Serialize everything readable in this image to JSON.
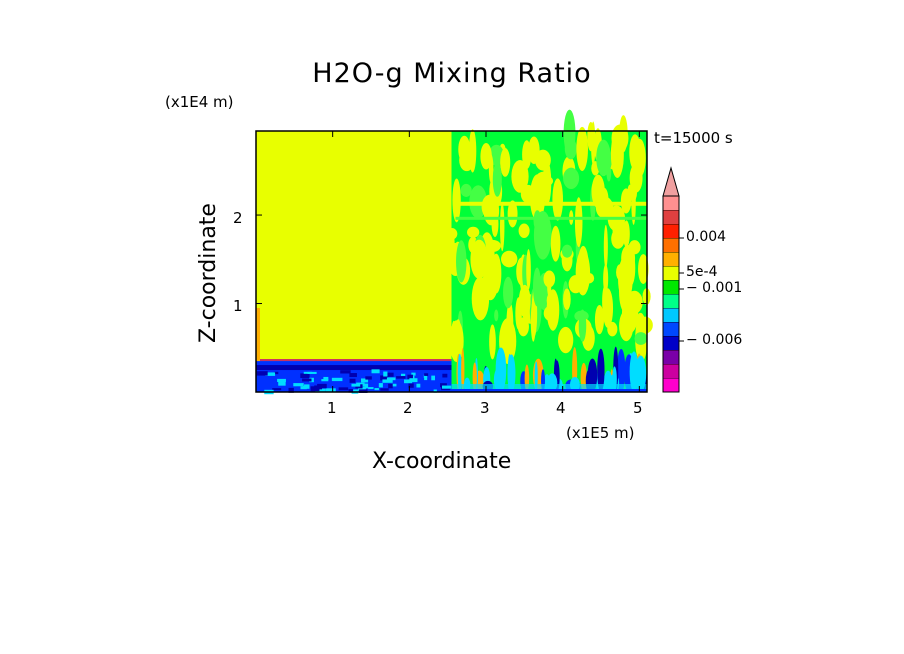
{
  "chart_data": {
    "type": "heatmap",
    "title": "H2O-g Mixing Ratio",
    "xlabel": "X-coordinate",
    "ylabel": "Z-coordinate",
    "x_unit": "(x1E5 m)",
    "y_unit": "(x1E4 m)",
    "time_label": "t=15000 s",
    "xlim": [
      0,
      5.1
    ],
    "ylim": [
      0,
      2.95
    ],
    "x_ticks": [
      "1",
      "2",
      "3",
      "4",
      "5"
    ],
    "y_ticks": [
      "1",
      "2"
    ],
    "colorbar": {
      "labels": [
        "0.004",
        "5e-4",
        "− 0.001",
        "− 0.006"
      ],
      "colors": [
        "#ff00cc",
        "#cc00a0",
        "#7a00a8",
        "#0000c8",
        "#0048ff",
        "#00c8ff",
        "#00ff88",
        "#00e800",
        "#e8ff00",
        "#ffb000",
        "#ff7000",
        "#ff2000",
        "#e04040",
        "#ff9090"
      ],
      "extend_max": true
    },
    "regions": [
      {
        "x": [
          0,
          2.55
        ],
        "z": [
          0.35,
          2.95
        ],
        "level": "yellow"
      },
      {
        "x": [
          0,
          2.55
        ],
        "z": [
          0,
          0.35
        ],
        "level": "blue-band"
      },
      {
        "x": [
          2.55,
          5.1
        ],
        "z": [
          0,
          2.95
        ],
        "level": "mixed green/yellow/cyan"
      }
    ]
  },
  "colors": {
    "yellow": "#e8ff00",
    "green": "#00ff38",
    "light_green": "#44ff44",
    "cyan": "#00ddff",
    "blue": "#0030ff",
    "dark_blue": "#0000b0",
    "orange": "#ffb000"
  }
}
